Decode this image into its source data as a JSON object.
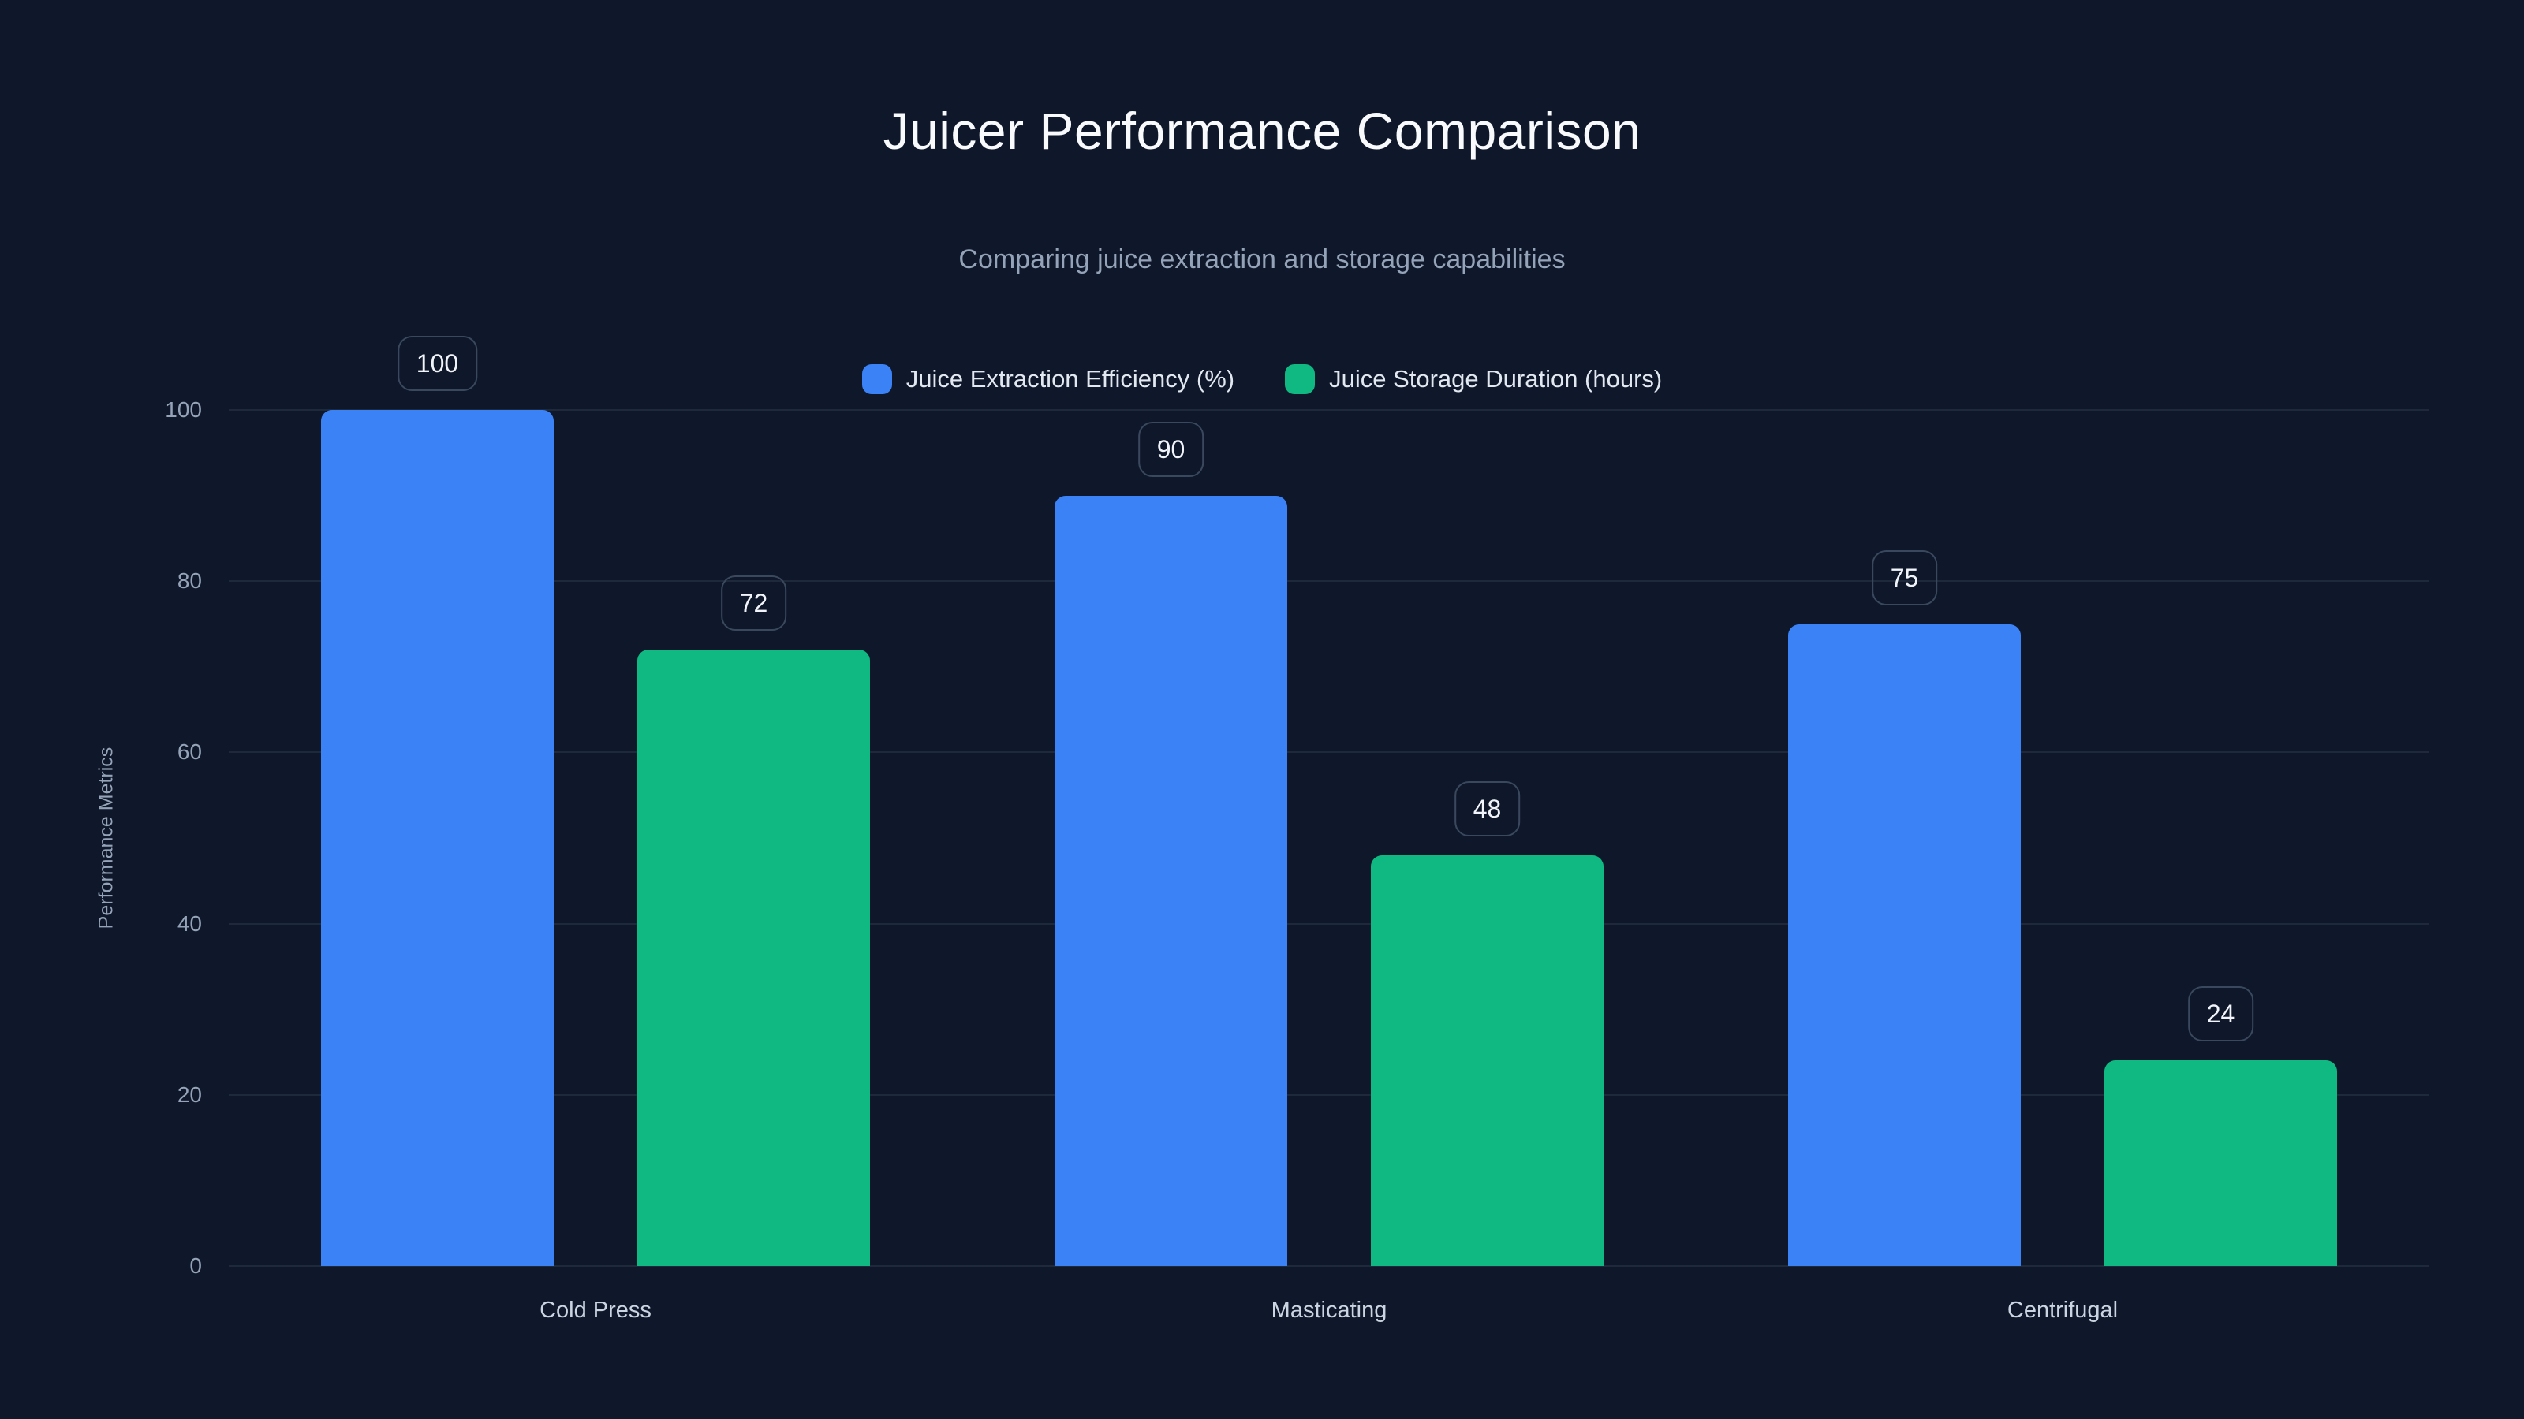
{
  "header": {
    "title": "Juicer Performance Comparison",
    "subtitle": "Comparing juice extraction and storage capabilities"
  },
  "chart_data": {
    "type": "bar",
    "title": "Juicer Performance Comparison",
    "subtitle": "Comparing juice extraction and storage capabilities",
    "categories": [
      "Cold Press",
      "Masticating",
      "Centrifugal"
    ],
    "series": [
      {
        "name": "Juice Extraction Efficiency (%)",
        "color": "#3b82f6",
        "values": [
          100,
          90,
          75
        ]
      },
      {
        "name": "Juice Storage Duration (hours)",
        "color": "#10b981",
        "values": [
          72,
          48,
          24
        ]
      }
    ],
    "xlabel": "",
    "ylabel": "Performance Metrics",
    "ylim": [
      0,
      100
    ],
    "yticks": [
      0,
      20,
      40,
      60,
      80,
      100
    ],
    "grid": true,
    "legend_position": "top-center",
    "value_labels": true
  },
  "colors": {
    "background": "#0f172a",
    "gridline": "#1e293b",
    "tick_text": "#94a3b8",
    "category_text": "#cbd5e1",
    "title_text": "#f8fafc",
    "subtitle_text": "#94a3b8",
    "legend_text": "#e2e8f0",
    "badge_border": "#3a485e",
    "badge_text": "#f1f5f9",
    "series_blue": "#3b82f6",
    "series_green": "#10b981"
  }
}
